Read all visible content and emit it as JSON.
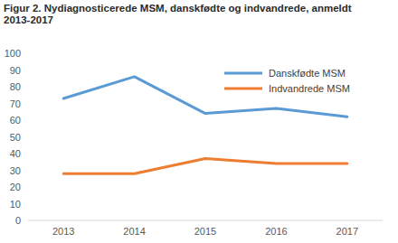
{
  "chart_data": {
    "type": "line",
    "title": "Figur 2. Nydiagnosticerede MSM, danskfødte og indvandrede, anmeldt 2013-2017",
    "categories": [
      "2013",
      "2014",
      "2015",
      "2016",
      "2017"
    ],
    "series": [
      {
        "name": "Danskfødte MSM",
        "color": "#5b9bd5",
        "values": [
          73,
          86,
          64,
          67,
          62
        ]
      },
      {
        "name": "Indvandrede MSM",
        "color": "#ed7d31",
        "values": [
          28,
          28,
          37,
          34,
          34
        ]
      }
    ],
    "ylim": [
      0,
      100
    ],
    "yticks": [
      0,
      10,
      20,
      30,
      40,
      50,
      60,
      70,
      80,
      90,
      100
    ],
    "grid": false,
    "legend": "upper right"
  }
}
